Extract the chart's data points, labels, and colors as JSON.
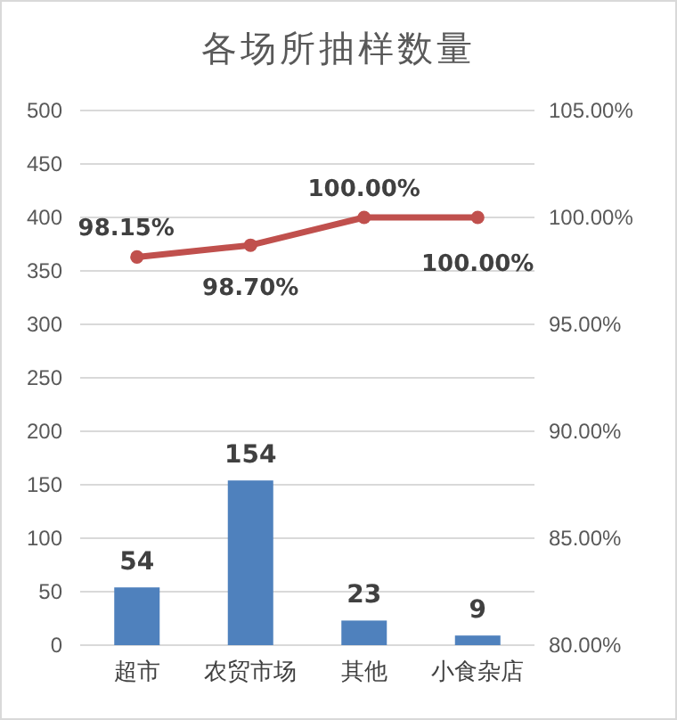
{
  "chart_data": {
    "type": "bar",
    "title": "各场所抽样数量",
    "categories": [
      "超市",
      "农贸市场",
      "其他",
      "小食杂店"
    ],
    "series": [
      {
        "color": "#4f81bd",
        "values": [
          54,
          154,
          23,
          9
        ]
      },
      {
        "type": "line",
        "axis": "y2",
        "color": "#c0504d",
        "values": [
          98.15,
          98.7,
          100,
          100
        ],
        "value_labels": [
          "98.15%",
          "98.70%",
          "100.00%",
          "100.00%"
        ]
      }
    ],
    "ylim": [
      0,
      500
    ],
    "yticks": [
      0,
      50,
      100,
      150,
      200,
      250,
      300,
      350,
      400,
      450,
      500
    ],
    "y2lim": [
      80,
      105
    ],
    "y2ticks": [
      {
        "value": 80,
        "label": "80.00%"
      },
      {
        "value": 85,
        "label": "85.00%"
      },
      {
        "value": 90,
        "label": "90.00%"
      },
      {
        "value": 95,
        "label": "95.00%"
      },
      {
        "value": 100,
        "label": "100.00%"
      },
      {
        "value": 105,
        "label": "105.00%"
      }
    ],
    "grid": "y",
    "data_labels": true,
    "marker": "circle",
    "line_style": "solid"
  }
}
